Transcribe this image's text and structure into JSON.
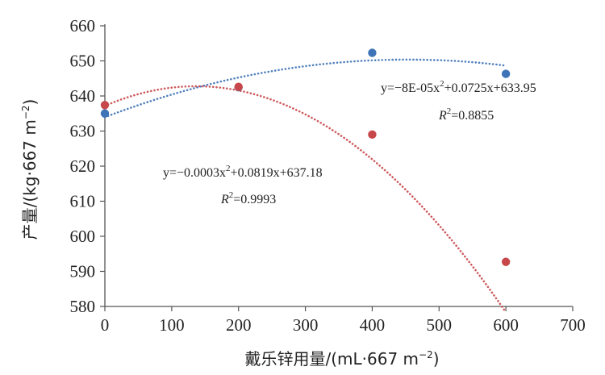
{
  "chart_data": {
    "type": "scatter",
    "x_axis": {
      "label_main": "戴乐锌用量/(mL·667 m",
      "label_sup": "−2",
      "label_close": ")",
      "range": [
        0,
        700
      ],
      "ticks": [
        0,
        100,
        200,
        300,
        400,
        500,
        600,
        700
      ]
    },
    "y_axis": {
      "label_main": "产量/(kg·667 m",
      "label_sup": "−2",
      "label_close": ")",
      "range": [
        580,
        660
      ],
      "ticks": [
        580,
        590,
        600,
        610,
        620,
        630,
        640,
        650,
        660
      ]
    },
    "grid": false,
    "legend": "none",
    "series": [
      {
        "color": "#3f73b8",
        "points": [
          {
            "x": 0,
            "y": 635.0
          },
          {
            "x": 200,
            "y": 642.5
          },
          {
            "x": 400,
            "y": 652.3
          },
          {
            "x": 600,
            "y": 646.3
          }
        ],
        "trendline": {
          "type": "poly2",
          "a": -8e-05,
          "b": 0.0725,
          "c": 633.95
        },
        "equation": {
          "prefix": "y=−8E-05x",
          "sup": "2",
          "suffix": "+0.0725x+633.95"
        },
        "r2": {
          "r": "R",
          "sup": "2",
          "value": "=0.8855"
        }
      },
      {
        "color": "#c8474a",
        "points": [
          {
            "x": 0,
            "y": 637.4
          },
          {
            "x": 200,
            "y": 642.6
          },
          {
            "x": 400,
            "y": 629.0
          },
          {
            "x": 600,
            "y": 592.7
          }
        ],
        "trendline": {
          "type": "poly2",
          "a": -0.0003,
          "b": 0.0819,
          "c": 637.18
        },
        "equation": {
          "prefix": "y=−0.0003x",
          "sup": "2",
          "suffix": "+0.0819x+637.18"
        },
        "r2": {
          "r": "R",
          "sup": "2",
          "value": "=0.9993"
        }
      }
    ]
  }
}
